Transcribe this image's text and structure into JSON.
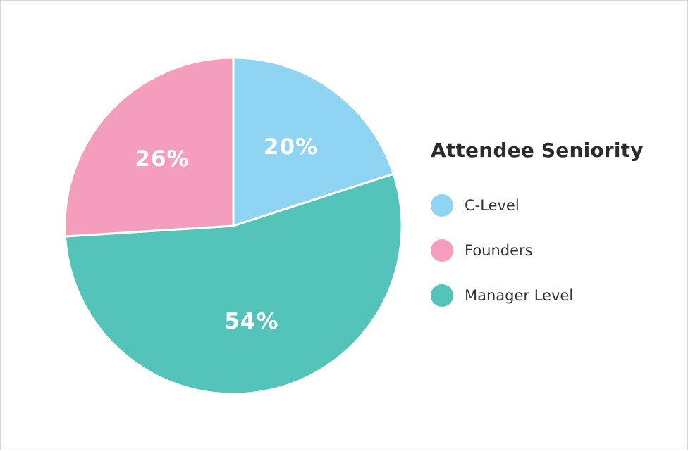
{
  "chart_data": {
    "type": "pie",
    "title": "Attendee Seniority",
    "slices": [
      {
        "label": "C-Level",
        "value": 20,
        "value_label": "20%",
        "color": "#8fd4f2"
      },
      {
        "label": "Manager Level",
        "value": 54,
        "value_label": "54%",
        "color": "#54c3b9"
      },
      {
        "label": "Founders",
        "value": 26,
        "value_label": "26%",
        "color": "#f59dbd"
      }
    ],
    "legend": {
      "placement": "right",
      "items": [
        {
          "label": "C-Level",
          "color": "#8fd4f2"
        },
        {
          "label": "Founders",
          "color": "#f59dbd"
        },
        {
          "label": "Manager Level",
          "color": "#54c3b9"
        }
      ]
    }
  }
}
